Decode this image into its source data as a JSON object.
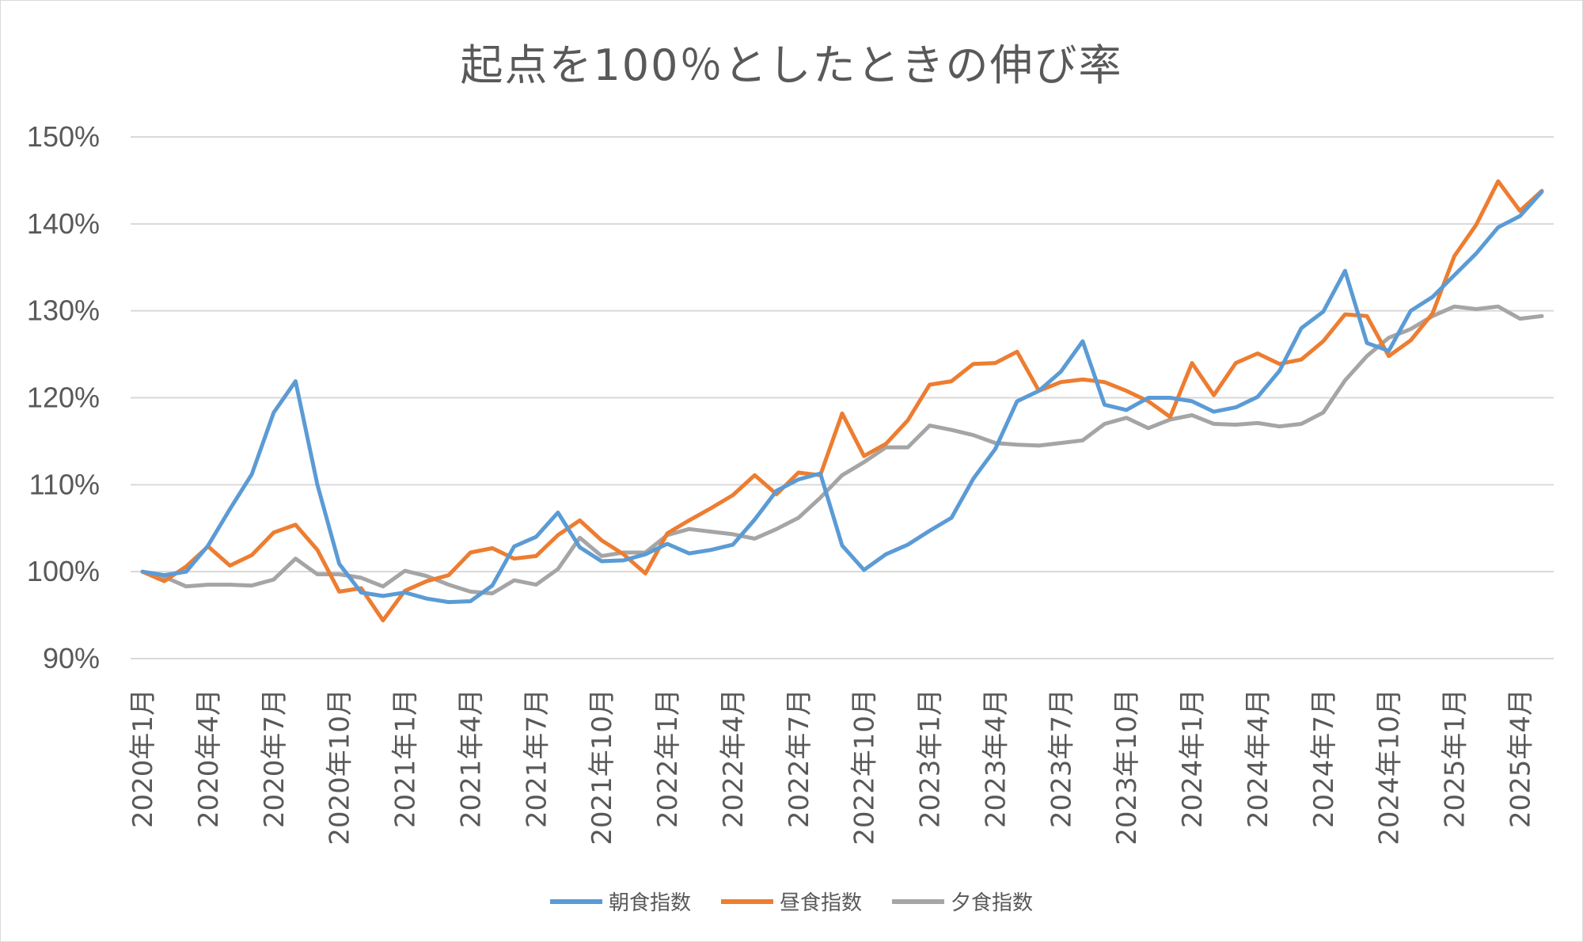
{
  "chart_data": {
    "type": "line",
    "title": "起点を100％としたときの伸び率",
    "ylim": [
      90,
      150
    ],
    "yticks": [
      90,
      100,
      110,
      120,
      130,
      140,
      150
    ],
    "ytick_labels": [
      "90%",
      "100%",
      "110%",
      "120%",
      "130%",
      "140%",
      "150%"
    ],
    "x_tick_labels": [
      "2020年1月",
      "2020年4月",
      "2020年7月",
      "2020年10月",
      "2021年1月",
      "2021年4月",
      "2021年7月",
      "2021年10月",
      "2022年1月",
      "2022年4月",
      "2022年7月",
      "2022年10月",
      "2023年1月",
      "2023年4月",
      "2023年7月",
      "2023年10月",
      "2024年1月",
      "2024年4月",
      "2024年7月",
      "2024年10月",
      "2025年1月",
      "2025年4月"
    ],
    "grid": true,
    "legend_position": "bottom",
    "series": [
      {
        "name": "朝食指数",
        "color": "#5b9bd5",
        "values": [
          100,
          99.6,
          100,
          103,
          107.2,
          111.2,
          118.3,
          121.9,
          110,
          100.9,
          97.6,
          97.2,
          97.6,
          96.9,
          96.5,
          96.6,
          98.4,
          102.9,
          104,
          106.8,
          102.8,
          101.2,
          101.3,
          102,
          103.2,
          102.1,
          102.5,
          103.1,
          106,
          109.3,
          110.6,
          111.3,
          103,
          100.2,
          102,
          103.1,
          104.7,
          106.2,
          110.7,
          114.1,
          119.6,
          120.8,
          123,
          126.5,
          119.2,
          118.6,
          120,
          120,
          119.6,
          118.4,
          118.9,
          120.1,
          123.1,
          128,
          129.9,
          134.6,
          126.3,
          125.4,
          130,
          131.6,
          134.1,
          136.6,
          139.6,
          140.9,
          143.7
        ]
      },
      {
        "name": "昼食指数",
        "color": "#ed7d31",
        "values": [
          100,
          98.9,
          100.6,
          102.9,
          100.7,
          101.9,
          104.5,
          105.4,
          102.5,
          97.7,
          98.1,
          94.4,
          97.8,
          98.9,
          99.6,
          102.2,
          102.7,
          101.5,
          101.8,
          104.2,
          105.9,
          103.6,
          102,
          99.8,
          104.4,
          105.9,
          107.3,
          108.8,
          111.1,
          108.9,
          111.4,
          111.1,
          118.2,
          113.3,
          114.7,
          117.4,
          121.5,
          121.9,
          123.9,
          124,
          125.3,
          120.8,
          121.8,
          122.1,
          121.8,
          120.8,
          119.6,
          117.8,
          124,
          120.3,
          124,
          125.1,
          123.9,
          124.4,
          126.5,
          129.6,
          129.4,
          124.8,
          126.6,
          129.7,
          136.3,
          139.9,
          144.9,
          141.5,
          143.8
        ]
      },
      {
        "name": "夕食指数",
        "color": "#a5a5a5",
        "values": [
          100,
          99.4,
          98.3,
          98.5,
          98.5,
          98.4,
          99.1,
          101.5,
          99.7,
          99.7,
          99.3,
          98.3,
          100.1,
          99.5,
          98.5,
          97.7,
          97.5,
          99,
          98.5,
          100.3,
          103.9,
          101.8,
          102.2,
          102.2,
          104.2,
          104.9,
          104.6,
          104.3,
          103.8,
          104.9,
          106.2,
          108.5,
          111.1,
          112.6,
          114.3,
          114.3,
          116.8,
          116.3,
          115.7,
          114.8,
          114.6,
          114.5,
          114.8,
          115.1,
          117,
          117.7,
          116.5,
          117.5,
          118,
          117,
          116.9,
          117.1,
          116.7,
          117,
          118.3,
          122,
          124.8,
          126.9,
          127.9,
          129.4,
          130.5,
          130.2,
          130.5,
          129.1,
          129.4
        ]
      }
    ]
  }
}
